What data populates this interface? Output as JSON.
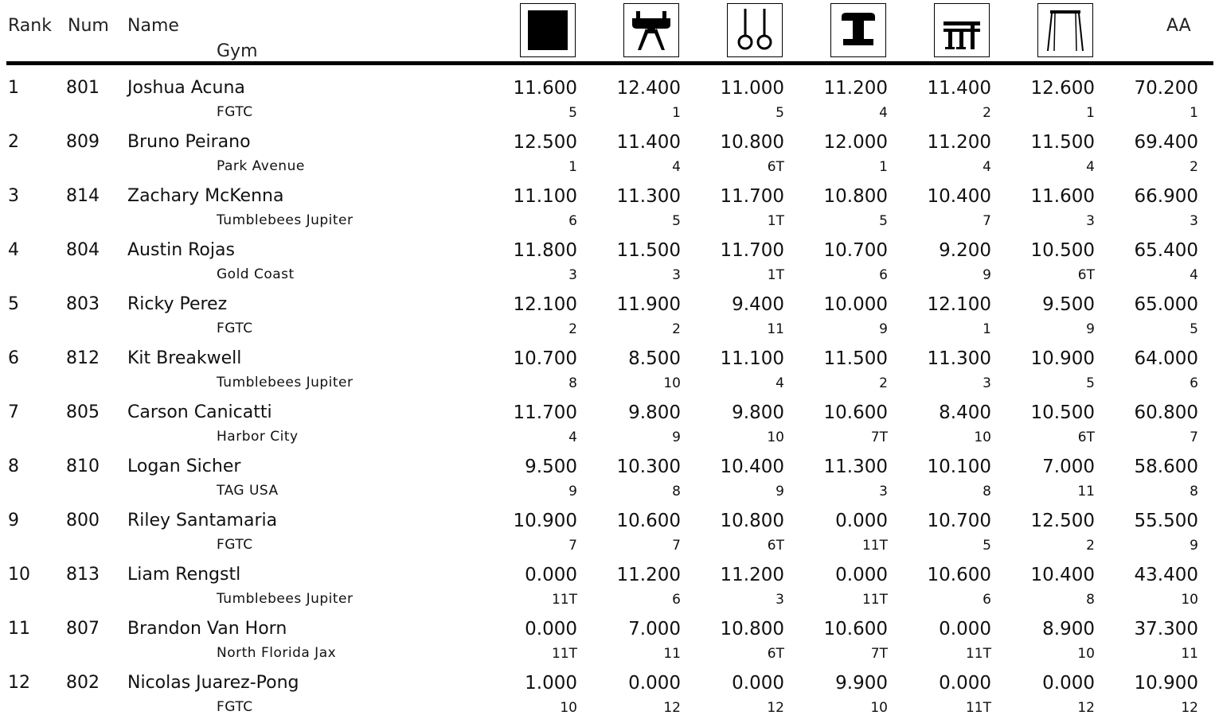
{
  "headers": {
    "rank": "Rank",
    "num": "Num",
    "name": "Name",
    "gym": "Gym",
    "aa": "AA"
  },
  "events": [
    {
      "icon": "floor-icon"
    },
    {
      "icon": "pommel-horse-icon"
    },
    {
      "icon": "rings-icon"
    },
    {
      "icon": "vault-icon"
    },
    {
      "icon": "parallel-bars-icon"
    },
    {
      "icon": "high-bar-icon"
    }
  ],
  "rows": [
    {
      "rank": "1",
      "num": "801",
      "name": "Joshua Acuna",
      "gym": "FGTC",
      "scores": [
        [
          "11.600",
          "5"
        ],
        [
          "12.400",
          "1"
        ],
        [
          "11.000",
          "5"
        ],
        [
          "11.200",
          "4"
        ],
        [
          "11.400",
          "2"
        ],
        [
          "12.600",
          "1"
        ],
        [
          "70.200",
          "1"
        ]
      ]
    },
    {
      "rank": "2",
      "num": "809",
      "name": "Bruno Peirano",
      "gym": "Park Avenue",
      "scores": [
        [
          "12.500",
          "1"
        ],
        [
          "11.400",
          "4"
        ],
        [
          "10.800",
          "6T"
        ],
        [
          "12.000",
          "1"
        ],
        [
          "11.200",
          "4"
        ],
        [
          "11.500",
          "4"
        ],
        [
          "69.400",
          "2"
        ]
      ]
    },
    {
      "rank": "3",
      "num": "814",
      "name": "Zachary McKenna",
      "gym": "Tumblebees Jupiter",
      "scores": [
        [
          "11.100",
          "6"
        ],
        [
          "11.300",
          "5"
        ],
        [
          "11.700",
          "1T"
        ],
        [
          "10.800",
          "5"
        ],
        [
          "10.400",
          "7"
        ],
        [
          "11.600",
          "3"
        ],
        [
          "66.900",
          "3"
        ]
      ]
    },
    {
      "rank": "4",
      "num": "804",
      "name": "Austin Rojas",
      "gym": "Gold Coast",
      "scores": [
        [
          "11.800",
          "3"
        ],
        [
          "11.500",
          "3"
        ],
        [
          "11.700",
          "1T"
        ],
        [
          "10.700",
          "6"
        ],
        [
          "9.200",
          "9"
        ],
        [
          "10.500",
          "6T"
        ],
        [
          "65.400",
          "4"
        ]
      ]
    },
    {
      "rank": "5",
      "num": "803",
      "name": "Ricky Perez",
      "gym": "FGTC",
      "scores": [
        [
          "12.100",
          "2"
        ],
        [
          "11.900",
          "2"
        ],
        [
          "9.400",
          "11"
        ],
        [
          "10.000",
          "9"
        ],
        [
          "12.100",
          "1"
        ],
        [
          "9.500",
          "9"
        ],
        [
          "65.000",
          "5"
        ]
      ]
    },
    {
      "rank": "6",
      "num": "812",
      "name": "Kit Breakwell",
      "gym": "Tumblebees Jupiter",
      "scores": [
        [
          "10.700",
          "8"
        ],
        [
          "8.500",
          "10"
        ],
        [
          "11.100",
          "4"
        ],
        [
          "11.500",
          "2"
        ],
        [
          "11.300",
          "3"
        ],
        [
          "10.900",
          "5"
        ],
        [
          "64.000",
          "6"
        ]
      ]
    },
    {
      "rank": "7",
      "num": "805",
      "name": "Carson Canicatti",
      "gym": "Harbor City",
      "scores": [
        [
          "11.700",
          "4"
        ],
        [
          "9.800",
          "9"
        ],
        [
          "9.800",
          "10"
        ],
        [
          "10.600",
          "7T"
        ],
        [
          "8.400",
          "10"
        ],
        [
          "10.500",
          "6T"
        ],
        [
          "60.800",
          "7"
        ]
      ]
    },
    {
      "rank": "8",
      "num": "810",
      "name": "Logan Sicher",
      "gym": "TAG USA",
      "scores": [
        [
          "9.500",
          "9"
        ],
        [
          "10.300",
          "8"
        ],
        [
          "10.400",
          "9"
        ],
        [
          "11.300",
          "3"
        ],
        [
          "10.100",
          "8"
        ],
        [
          "7.000",
          "11"
        ],
        [
          "58.600",
          "8"
        ]
      ]
    },
    {
      "rank": "9",
      "num": "800",
      "name": "Riley Santamaria",
      "gym": "FGTC",
      "scores": [
        [
          "10.900",
          "7"
        ],
        [
          "10.600",
          "7"
        ],
        [
          "10.800",
          "6T"
        ],
        [
          "0.000",
          "11T"
        ],
        [
          "10.700",
          "5"
        ],
        [
          "12.500",
          "2"
        ],
        [
          "55.500",
          "9"
        ]
      ]
    },
    {
      "rank": "10",
      "num": "813",
      "name": "Liam Rengstl",
      "gym": "Tumblebees Jupiter",
      "scores": [
        [
          "0.000",
          "11T"
        ],
        [
          "11.200",
          "6"
        ],
        [
          "11.200",
          "3"
        ],
        [
          "0.000",
          "11T"
        ],
        [
          "10.600",
          "6"
        ],
        [
          "10.400",
          "8"
        ],
        [
          "43.400",
          "10"
        ]
      ]
    },
    {
      "rank": "11",
      "num": "807",
      "name": "Brandon Van Horn",
      "gym": "North Florida Jax",
      "scores": [
        [
          "0.000",
          "11T"
        ],
        [
          "7.000",
          "11"
        ],
        [
          "10.800",
          "6T"
        ],
        [
          "10.600",
          "7T"
        ],
        [
          "0.000",
          "11T"
        ],
        [
          "8.900",
          "10"
        ],
        [
          "37.300",
          "11"
        ]
      ]
    },
    {
      "rank": "12",
      "num": "802",
      "name": "Nicolas Juarez-Pong",
      "gym": "FGTC",
      "scores": [
        [
          "1.000",
          "10"
        ],
        [
          "0.000",
          "12"
        ],
        [
          "0.000",
          "12"
        ],
        [
          "9.900",
          "10"
        ],
        [
          "0.000",
          "11T"
        ],
        [
          "0.000",
          "12"
        ],
        [
          "10.900",
          "12"
        ]
      ]
    }
  ]
}
